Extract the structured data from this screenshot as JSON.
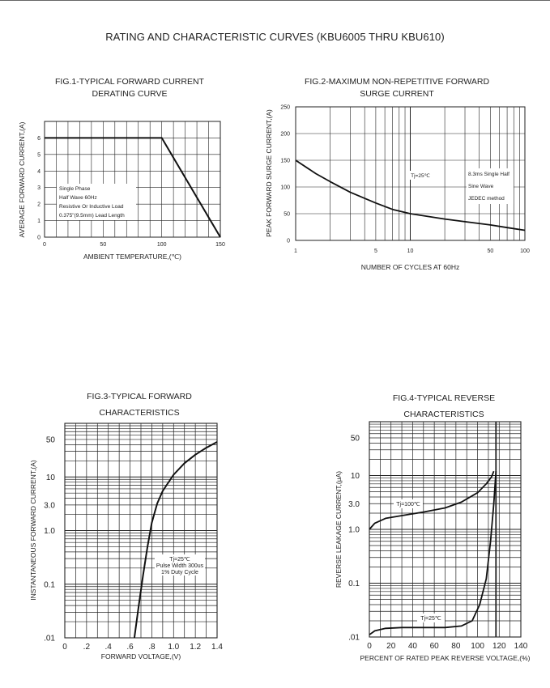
{
  "page_title": "RATING AND CHARACTERISTIC CURVES (KBU6005 THRU KBU610)",
  "chart_data": [
    {
      "id": "fig1",
      "type": "line",
      "title_lines": [
        "FIG.1-TYPICAL FORWARD CURRENT",
        "DERATING CURVE"
      ],
      "xlabel": "AMBIENT TEMPERATURE,(℃)",
      "ylabel": "AVERAGE FORWARD CURRENT,(A)",
      "xlim": [
        0,
        150
      ],
      "ylim": [
        0,
        7
      ],
      "xticks": [
        "0",
        "50",
        "100",
        "150"
      ],
      "yticks": [
        "0",
        "1",
        "2",
        "3",
        "4",
        "5",
        "6"
      ],
      "series": [
        {
          "x": [
            0,
            100,
            150
          ],
          "y": [
            6,
            6,
            0
          ]
        }
      ],
      "annotations": [
        "Single Phase",
        "Half Wave 60Hz",
        "Resistive Or Inductive Load",
        "0.375\"(9.5mm) Lead Length"
      ]
    },
    {
      "id": "fig2",
      "type": "line",
      "title_lines": [
        "FIG.2-MAXIMUM NON-REPETITIVE FORWARD",
        "SURGE CURRENT"
      ],
      "xlabel": "NUMBER OF CYCLES AT 60Hz",
      "ylabel": "PEAK FORWARD SURGE CURRENT,(A)",
      "xscale": "log",
      "xlim": [
        1,
        100
      ],
      "ylim": [
        0,
        250
      ],
      "xticks": [
        "1",
        "5",
        "10",
        "50",
        "100"
      ],
      "yticks": [
        "0",
        "50",
        "100",
        "150",
        "200",
        "250"
      ],
      "series": [
        {
          "x": [
            1,
            1.5,
            2,
            3,
            5,
            7,
            10,
            20,
            30,
            50,
            70,
            100
          ],
          "y": [
            150,
            125,
            110,
            90,
            70,
            58,
            50,
            40,
            35,
            29,
            24,
            19
          ]
        }
      ],
      "annotations": [
        "Tj=25℃",
        "8.3ms Single Half",
        "Sine Wave",
        "JEDEC method"
      ]
    },
    {
      "id": "fig3",
      "type": "line",
      "title_lines": [
        "FIG.3-TYPICAL FORWARD",
        "CHARACTERISTICS"
      ],
      "xlabel": "FORWARD VOLTAGE,(V)",
      "ylabel": "INSTANTANEOUS FORWARD CURRENT,(A)",
      "yscale": "log",
      "xlim": [
        0,
        1.4
      ],
      "ylim": [
        0.01,
        100
      ],
      "xticks": [
        "0",
        ".2",
        ".4",
        ".6",
        ".8",
        "1.0",
        "1.2",
        "1.4"
      ],
      "yticks": [
        "50",
        "10",
        "3.0",
        "1.0",
        "0.1",
        ".01"
      ],
      "ytick_values": [
        50,
        10,
        3,
        1,
        0.1,
        0.01
      ],
      "series": [
        {
          "x": [
            0.64,
            0.68,
            0.72,
            0.76,
            0.8,
            0.85,
            0.9,
            1.0,
            1.1,
            1.2,
            1.3,
            1.4
          ],
          "y": [
            0.01,
            0.04,
            0.15,
            0.5,
            1.4,
            3.2,
            5.5,
            11,
            18,
            26,
            35,
            45
          ]
        }
      ],
      "annotations": [
        "Tj=25℃",
        "Pulse Width 300us",
        "1% Duty Cycle"
      ]
    },
    {
      "id": "fig4",
      "type": "line",
      "title_lines": [
        "FIG.4-TYPICAL REVERSE",
        "CHARACTERISTICS"
      ],
      "xlabel": "PERCENT OF RATED PEAK REVERSE VOLTAGE,(%)",
      "ylabel": "REVERSE LEAKAGE CURRENT,(μA)",
      "yscale": "log",
      "xlim": [
        0,
        140
      ],
      "ylim": [
        0.01,
        100
      ],
      "xticks": [
        "0",
        "20",
        "40",
        "60",
        "80",
        "100",
        "120",
        "140"
      ],
      "yticks": [
        "50",
        "10",
        "3.0",
        "1.0",
        "0.1",
        ".01"
      ],
      "ytick_values": [
        50,
        10,
        3,
        1,
        0.1,
        0.01
      ],
      "series": [
        {
          "name": "Tj=100℃",
          "x": [
            0,
            5,
            15,
            30,
            50,
            70,
            85,
            100,
            108,
            113,
            115
          ],
          "y": [
            1.0,
            1.3,
            1.6,
            1.8,
            2.1,
            2.5,
            3.2,
            4.8,
            7.0,
            9.5,
            12
          ]
        },
        {
          "name": "Tj=25℃",
          "x": [
            0,
            5,
            15,
            30,
            50,
            70,
            85,
            95,
            102,
            108,
            112,
            115,
            117
          ],
          "y": [
            0.011,
            0.013,
            0.0145,
            0.015,
            0.015,
            0.015,
            0.016,
            0.02,
            0.04,
            0.12,
            0.6,
            3,
            12
          ]
        }
      ],
      "annotations": [
        "Tj=100℃",
        "Tj=25℃"
      ]
    }
  ]
}
